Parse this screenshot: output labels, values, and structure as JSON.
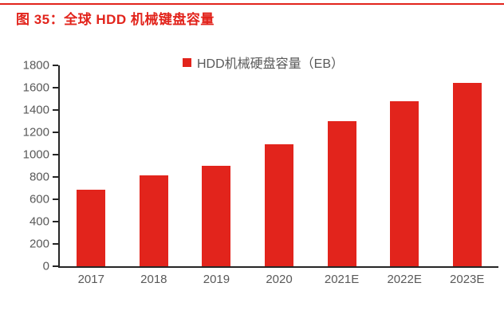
{
  "header": {
    "title": "图 35：全球 HDD 机械键盘容量"
  },
  "colors": {
    "accent": "#e2241c",
    "axis": "#262626",
    "tick_label_gray": "#595959",
    "background": "#ffffff"
  },
  "chart_data": {
    "type": "bar",
    "title": "图 35：全球 HDD 机械键盘容量",
    "legend_label": "HDD机械硬盘容量（EB）",
    "legend_position": "top-center",
    "categories": [
      "2017",
      "2018",
      "2019",
      "2020",
      "2021E",
      "2022E",
      "2023E"
    ],
    "values": [
      685,
      815,
      900,
      1090,
      1300,
      1480,
      1645
    ],
    "xlabel": "",
    "ylabel": "",
    "ylim": [
      0,
      1800
    ],
    "ytick_step": 200,
    "yticks": [
      0,
      200,
      400,
      600,
      800,
      1000,
      1200,
      1400,
      1600,
      1800
    ],
    "grid": false,
    "bar_color": "#e2241c"
  }
}
